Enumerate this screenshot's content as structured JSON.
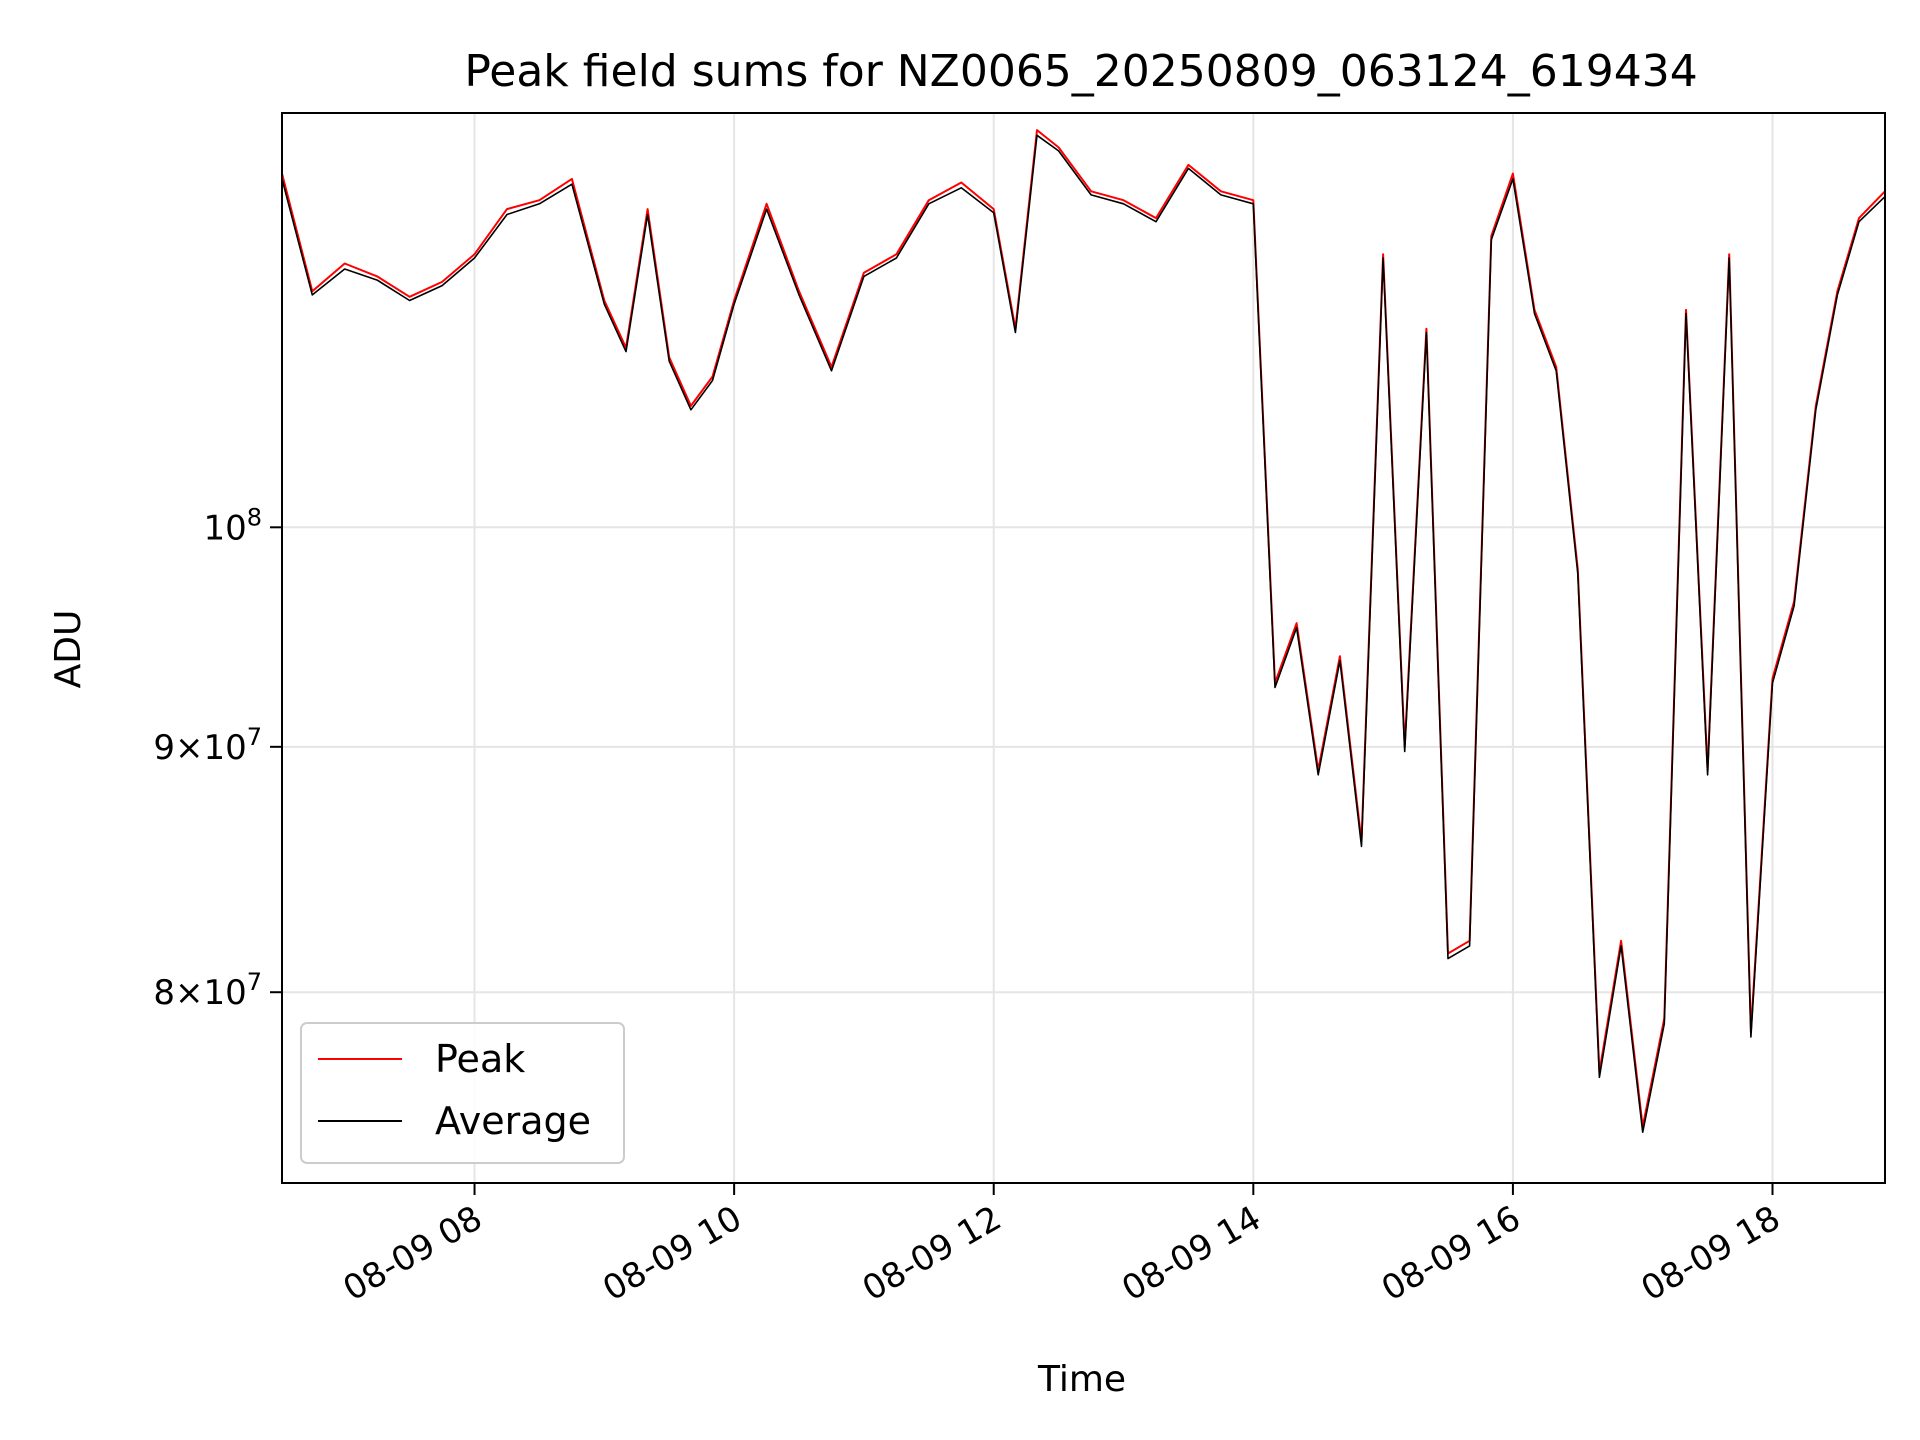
{
  "chart_data": {
    "type": "line",
    "title": "Peak field sums for NZ0065_20250809_063124_619434",
    "xlabel": "Time",
    "ylabel": "ADU",
    "y_scale": "log",
    "xlim": [
      "2025-08-09 06:31",
      "2025-08-09 18:52"
    ],
    "ylim": [
      73000000,
      122000000
    ],
    "x_tick_labels": [
      "08-09 08",
      "08-09 10",
      "08-09 12",
      "08-09 14",
      "08-09 16",
      "08-09 18"
    ],
    "x_tick_values": [
      "2025-08-09 08:00",
      "2025-08-09 10:00",
      "2025-08-09 12:00",
      "2025-08-09 14:00",
      "2025-08-09 16:00",
      "2025-08-09 18:00"
    ],
    "y_ticks": [
      {
        "value": 80000000,
        "mantissa": "8",
        "exponent": "7"
      },
      {
        "value": 90000000,
        "mantissa": "9",
        "exponent": "7"
      },
      {
        "value": 100000000,
        "mantissa": "",
        "exponent": "8"
      }
    ],
    "grid": true,
    "legend_position": "lower-left",
    "x": [
      "06:31",
      "06:45",
      "07:00",
      "07:15",
      "07:30",
      "07:45",
      "08:00",
      "08:15",
      "08:30",
      "08:45",
      "09:00",
      "09:10",
      "09:20",
      "09:30",
      "09:40",
      "09:50",
      "10:00",
      "10:15",
      "10:30",
      "10:45",
      "11:00",
      "11:15",
      "11:30",
      "11:45",
      "12:00",
      "12:10",
      "12:20",
      "12:30",
      "12:45",
      "13:00",
      "13:15",
      "13:30",
      "13:45",
      "14:00",
      "14:10",
      "14:20",
      "14:30",
      "14:40",
      "14:50",
      "15:00",
      "15:10",
      "15:20",
      "15:30",
      "15:40",
      "15:50",
      "16:00",
      "16:10",
      "16:20",
      "16:30",
      "16:40",
      "16:50",
      "17:00",
      "17:10",
      "17:20",
      "17:30",
      "17:40",
      "17:50",
      "18:00",
      "18:10",
      "18:20",
      "18:30",
      "18:40",
      "18:52"
    ],
    "series": [
      {
        "name": "Peak",
        "color": "#ff0000",
        "values": [
          118500000,
          112000000,
          113500000,
          112800000,
          111700000,
          112500000,
          114000000,
          116500000,
          117000000,
          118200000,
          111500000,
          109000000,
          116500000,
          108500000,
          106000000,
          107500000,
          111500000,
          116800000,
          112000000,
          108000000,
          113000000,
          114000000,
          117000000,
          118000000,
          116500000,
          110000000,
          121000000,
          120000000,
          117500000,
          117000000,
          116000000,
          119000000,
          117500000,
          117000000,
          92800000,
          95500000,
          89000000,
          94000000,
          86000000,
          114000000,
          90000000,
          110000000,
          81500000,
          82000000,
          115000000,
          118500000,
          111000000,
          108000000,
          98000000,
          77000000,
          82000000,
          75000000,
          79000000,
          111000000,
          89000000,
          114000000,
          78500000,
          93000000,
          96500000,
          106000000,
          112000000,
          116000000,
          117500000
        ]
      },
      {
        "name": "Average",
        "color": "#000000",
        "values": [
          118200000,
          111800000,
          113200000,
          112600000,
          111500000,
          112300000,
          113800000,
          116200000,
          116800000,
          117900000,
          111300000,
          108800000,
          116200000,
          108300000,
          105800000,
          107300000,
          111300000,
          116500000,
          111800000,
          107800000,
          112800000,
          113800000,
          116800000,
          117700000,
          116300000,
          109800000,
          120700000,
          119800000,
          117300000,
          116800000,
          115800000,
          118800000,
          117300000,
          116800000,
          92600000,
          95300000,
          88800000,
          93800000,
          85800000,
          113800000,
          89800000,
          109800000,
          81300000,
          81800000,
          114800000,
          118200000,
          110800000,
          107800000,
          97800000,
          76800000,
          81800000,
          74800000,
          78800000,
          110800000,
          88800000,
          113800000,
          78300000,
          92800000,
          96300000,
          105800000,
          111800000,
          115800000,
          117200000
        ]
      }
    ]
  }
}
